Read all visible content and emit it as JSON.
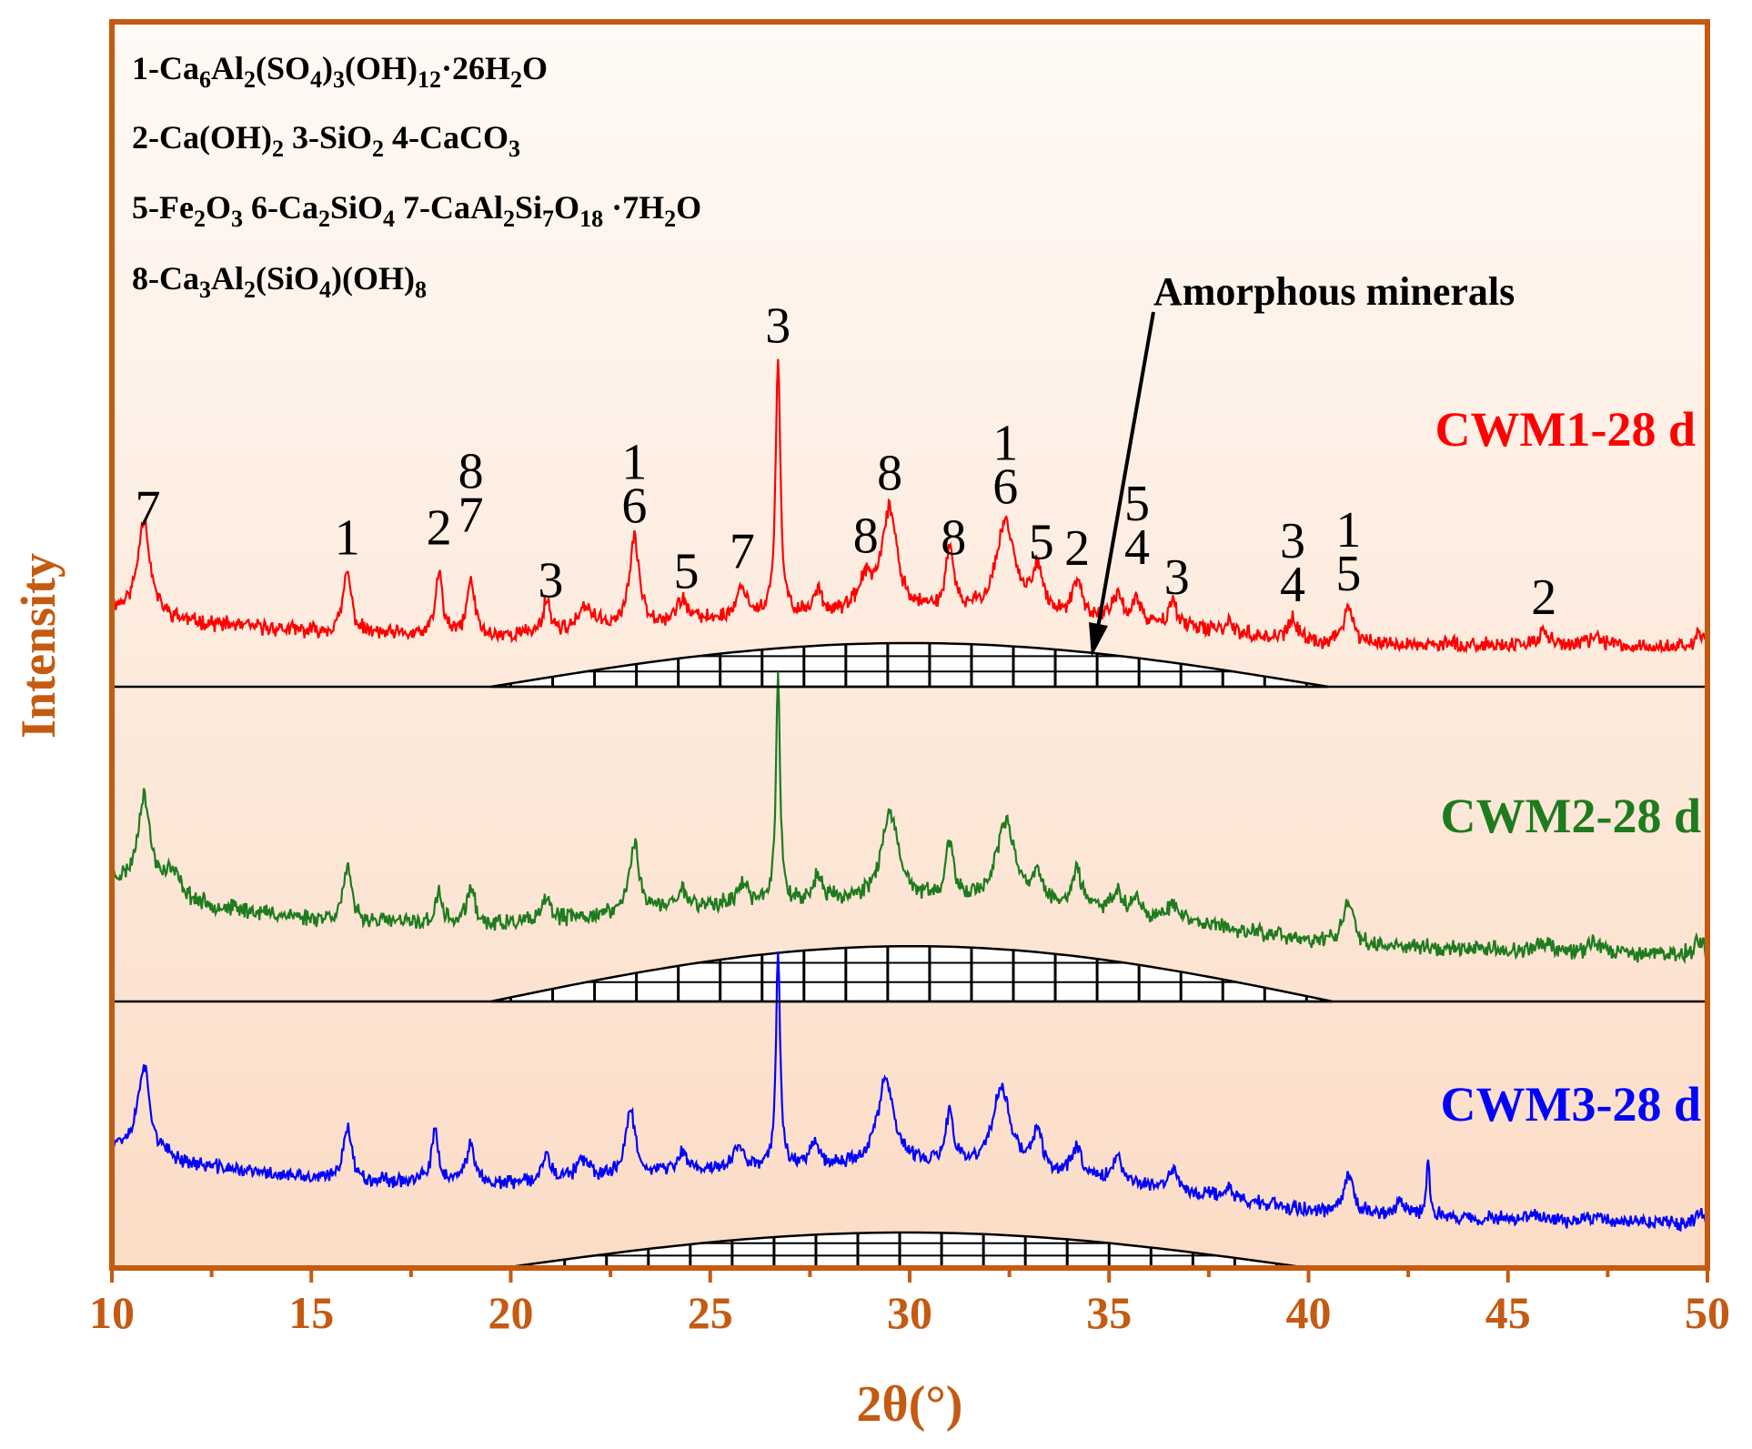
{
  "chart_data": {
    "type": "line",
    "xlabel": "2θ(°)",
    "ylabel": "Intensity",
    "xlim": [
      10,
      50
    ],
    "xticks": [
      10,
      15,
      20,
      25,
      30,
      35,
      40,
      45,
      50
    ],
    "colors": {
      "axis": "#c55a11",
      "cwm1": "#ff0000",
      "cwm2": "#1e7b1e",
      "cwm3": "#0000ff",
      "bg_top": "#fffaf6",
      "bg_bottom": "#fbdcc6"
    },
    "legend_lines": [
      [
        {
          "t": "1-Ca"
        },
        {
          "t": "6",
          "s": "sub"
        },
        {
          "t": "Al"
        },
        {
          "t": "2",
          "s": "sub"
        },
        {
          "t": "(SO"
        },
        {
          "t": "4",
          "s": "sub"
        },
        {
          "t": ")"
        },
        {
          "t": "3",
          "s": "sub"
        },
        {
          "t": "(OH)"
        },
        {
          "t": "12",
          "s": "sub"
        },
        {
          "t": "·26H"
        },
        {
          "t": "2",
          "s": "sub"
        },
        {
          "t": "O"
        }
      ],
      [
        {
          "t": "2-Ca(OH)"
        },
        {
          "t": "2",
          "s": "sub"
        },
        {
          "t": "   3-SiO"
        },
        {
          "t": "2",
          "s": "sub"
        },
        {
          "t": "  4-CaCO"
        },
        {
          "t": "3",
          "s": "sub"
        }
      ],
      [
        {
          "t": "5-Fe"
        },
        {
          "t": "2",
          "s": "sub"
        },
        {
          "t": "O"
        },
        {
          "t": "3",
          "s": "sub"
        },
        {
          "t": " 6-Ca"
        },
        {
          "t": "2",
          "s": "sub"
        },
        {
          "t": "SiO"
        },
        {
          "t": "4",
          "s": "sub"
        },
        {
          "t": "  7-CaAl"
        },
        {
          "t": "2",
          "s": "sub"
        },
        {
          "t": "Si"
        },
        {
          "t": "7",
          "s": "sub"
        },
        {
          "t": "O"
        },
        {
          "t": "18",
          "s": "sub"
        },
        {
          "t": " ·7H"
        },
        {
          "t": "2",
          "s": "sub"
        },
        {
          "t": "O"
        }
      ],
      [
        {
          "t": "8-Ca"
        },
        {
          "t": "3",
          "s": "sub"
        },
        {
          "t": "Al"
        },
        {
          "t": "2",
          "s": "sub"
        },
        {
          "t": "(SiO"
        },
        {
          "t": "4",
          "s": "sub"
        },
        {
          "t": ")(OH)"
        },
        {
          "t": "8",
          "s": "sub"
        }
      ]
    ],
    "annotation": "Amorphous minerals",
    "series": [
      {
        "name": "CWM1-28 d",
        "color": "#ff0000",
        "seed": 11,
        "noise": 4,
        "background": [
          [
            10,
            27
          ],
          [
            12,
            18
          ],
          [
            15,
            12
          ],
          [
            18,
            9
          ],
          [
            22,
            7
          ],
          [
            26,
            6
          ],
          [
            30,
            6
          ],
          [
            35,
            5
          ],
          [
            40,
            4
          ],
          [
            45,
            3
          ],
          [
            50,
            2
          ]
        ],
        "peaks": [
          [
            10.8,
            62,
            0.18
          ],
          [
            15.9,
            40,
            0.12
          ],
          [
            18.2,
            42,
            0.1
          ],
          [
            19.0,
            36,
            0.12
          ],
          [
            20.9,
            22,
            0.1
          ],
          [
            21.9,
            14,
            0.2
          ],
          [
            23.1,
            55,
            0.15
          ],
          [
            24.3,
            14,
            0.15
          ],
          [
            25.8,
            20,
            0.15
          ],
          [
            26.7,
            165,
            0.07
          ],
          [
            27.7,
            15,
            0.12
          ],
          [
            28.9,
            20,
            0.2
          ],
          [
            29.5,
            66,
            0.22
          ],
          [
            31.0,
            40,
            0.12
          ],
          [
            32.4,
            60,
            0.28
          ],
          [
            33.2,
            30,
            0.15
          ],
          [
            34.2,
            22,
            0.15
          ],
          [
            35.2,
            18,
            0.15
          ],
          [
            35.7,
            14,
            0.12
          ],
          [
            36.6,
            18,
            0.12
          ],
          [
            38.0,
            8,
            0.12
          ],
          [
            39.6,
            14,
            0.12
          ],
          [
            41.0,
            24,
            0.15
          ],
          [
            45.9,
            10,
            0.15
          ],
          [
            47.2,
            6,
            0.2
          ],
          [
            49.8,
            8,
            0.15
          ]
        ],
        "hump_from": 19.5,
        "hump_to": 40.5,
        "hump_height": 30
      },
      {
        "name": "CWM2-28 d",
        "color": "#1e7b1e",
        "seed": 23,
        "noise": 5,
        "background": [
          [
            10,
            62
          ],
          [
            12,
            44
          ],
          [
            15,
            34
          ],
          [
            18,
            30
          ],
          [
            22,
            27
          ],
          [
            26,
            26
          ],
          [
            30,
            25
          ],
          [
            35,
            22
          ],
          [
            40,
            16
          ],
          [
            45,
            11
          ],
          [
            50,
            7
          ]
        ],
        "peaks": [
          [
            10.8,
            68,
            0.18
          ],
          [
            11.5,
            18,
            0.3
          ],
          [
            15.9,
            38,
            0.12
          ],
          [
            18.2,
            22,
            0.1
          ],
          [
            19.0,
            28,
            0.12
          ],
          [
            20.9,
            18,
            0.1
          ],
          [
            23.1,
            50,
            0.15
          ],
          [
            24.3,
            14,
            0.15
          ],
          [
            25.8,
            14,
            0.15
          ],
          [
            26.7,
            170,
            0.06
          ],
          [
            27.7,
            18,
            0.12
          ],
          [
            29.5,
            62,
            0.25
          ],
          [
            31.0,
            38,
            0.12
          ],
          [
            32.4,
            58,
            0.28
          ],
          [
            33.2,
            20,
            0.15
          ],
          [
            34.2,
            25,
            0.15
          ],
          [
            35.2,
            16,
            0.15
          ],
          [
            35.7,
            12,
            0.12
          ],
          [
            36.6,
            14,
            0.12
          ],
          [
            41.0,
            32,
            0.16
          ],
          [
            46.0,
            6,
            0.2
          ],
          [
            47.2,
            8,
            0.2
          ],
          [
            49.8,
            10,
            0.15
          ]
        ],
        "hump_from": 19.5,
        "hump_to": 40.6,
        "hump_height": 38
      },
      {
        "name": "CWM3-28 d",
        "color": "#0000ff",
        "seed": 37,
        "noise": 4,
        "background": [
          [
            10,
            60
          ],
          [
            12,
            46
          ],
          [
            15,
            36
          ],
          [
            18,
            34
          ],
          [
            22,
            30
          ],
          [
            26,
            29
          ],
          [
            30,
            27
          ],
          [
            35,
            22
          ],
          [
            40,
            14
          ],
          [
            45,
            8
          ],
          [
            50,
            5
          ]
        ],
        "peaks": [
          [
            10.8,
            60,
            0.18
          ],
          [
            15.9,
            38,
            0.12
          ],
          [
            18.1,
            34,
            0.1
          ],
          [
            19.0,
            28,
            0.12
          ],
          [
            20.9,
            22,
            0.1
          ],
          [
            21.8,
            12,
            0.2
          ],
          [
            23.0,
            45,
            0.15
          ],
          [
            24.3,
            12,
            0.15
          ],
          [
            25.7,
            14,
            0.15
          ],
          [
            26.7,
            150,
            0.06
          ],
          [
            27.6,
            18,
            0.12
          ],
          [
            29.4,
            58,
            0.25
          ],
          [
            31.0,
            35,
            0.12
          ],
          [
            32.3,
            55,
            0.28
          ],
          [
            33.2,
            26,
            0.15
          ],
          [
            34.2,
            20,
            0.15
          ],
          [
            35.2,
            16,
            0.15
          ],
          [
            36.6,
            14,
            0.12
          ],
          [
            38.0,
            8,
            0.12
          ],
          [
            41.0,
            25,
            0.15
          ],
          [
            42.3,
            8,
            0.15
          ],
          [
            43.0,
            38,
            0.05
          ],
          [
            45.6,
            6,
            0.2
          ],
          [
            47.2,
            5,
            0.2
          ],
          [
            49.8,
            8,
            0.15
          ]
        ],
        "hump_from": 19.8,
        "hump_to": 40.0,
        "hump_height": 30
      }
    ],
    "peak_labels": [
      {
        "x": 10.9,
        "lines": [
          "7"
        ]
      },
      {
        "x": 15.9,
        "lines": [
          "1"
        ]
      },
      {
        "x": 18.2,
        "lines": [
          "2"
        ],
        "offset": -10
      },
      {
        "x": 19.0,
        "lines": [
          "8",
          "7"
        ],
        "offset": -35
      },
      {
        "x": 21.0,
        "lines": [
          "3"
        ]
      },
      {
        "x": 23.1,
        "lines": [
          "1",
          "6"
        ]
      },
      {
        "x": 24.4,
        "lines": [
          "5"
        ]
      },
      {
        "x": 25.8,
        "lines": [
          "7"
        ]
      },
      {
        "x": 26.7,
        "lines": [
          "3"
        ]
      },
      {
        "x": 28.9,
        "lines": [
          "8"
        ]
      },
      {
        "x": 29.5,
        "lines": [
          "8"
        ]
      },
      {
        "x": 31.1,
        "lines": [
          "8"
        ]
      },
      {
        "x": 32.4,
        "lines": [
          "1",
          "6"
        ]
      },
      {
        "x": 33.3,
        "lines": [
          "5"
        ]
      },
      {
        "x": 34.2,
        "lines": [
          "2"
        ]
      },
      {
        "x": 35.7,
        "lines": [
          "5",
          "4"
        ],
        "offset": -20
      },
      {
        "x": 36.7,
        "lines": [
          "3"
        ]
      },
      {
        "x": 39.6,
        "lines": [
          "3",
          "4"
        ]
      },
      {
        "x": 41.0,
        "lines": [
          "1",
          "5"
        ]
      },
      {
        "x": 45.9,
        "lines": [
          "2"
        ]
      }
    ]
  }
}
